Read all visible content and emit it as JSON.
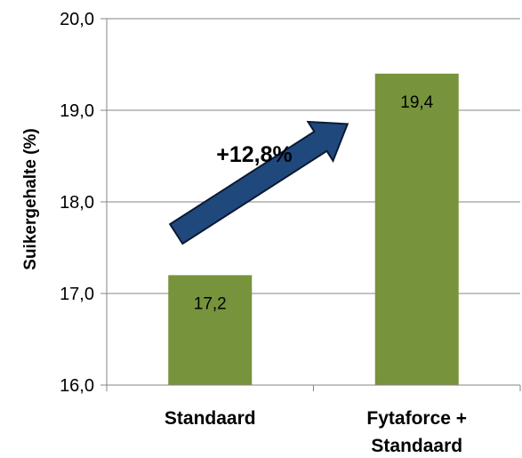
{
  "chart_data": {
    "type": "bar",
    "ylabel": "Suikergehalte (%)",
    "categories": [
      [
        "Standaard"
      ],
      [
        "Fytaforce +",
        "Standaard"
      ]
    ],
    "values": [
      17.2,
      19.4
    ],
    "data_labels": [
      "17,2",
      "19,4"
    ],
    "ylim": [
      16.0,
      20.0
    ],
    "yticks": [
      16.0,
      17.0,
      18.0,
      19.0,
      20.0
    ],
    "ytick_labels": [
      "16,0",
      "17,0",
      "18,0",
      "19,0",
      "20,0"
    ],
    "grid": true,
    "legend": "none",
    "annotation": {
      "text": "+12,8%",
      "type": "arrow",
      "from": {
        "category_index": 0,
        "value": 17.65
      },
      "to": {
        "category_index": 1,
        "value": 18.85
      }
    },
    "colors": {
      "bar": "#77933C",
      "arrow_fill": "#1F497D",
      "arrow_stroke": "#0B1A33",
      "grid": "#868686",
      "axis": "#868686"
    }
  }
}
